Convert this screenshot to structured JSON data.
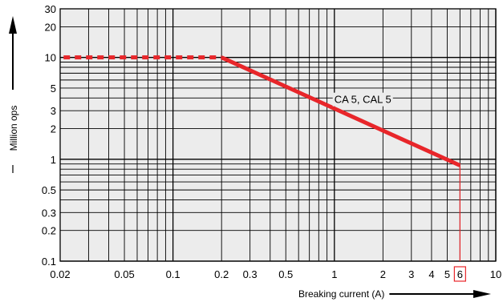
{
  "chart_data": {
    "type": "line",
    "title": "",
    "xlabel": "Breaking current (A)",
    "ylabel": "Million ops",
    "x_scale": "log",
    "y_scale": "log",
    "xlim": [
      0.02,
      10
    ],
    "ylim": [
      0.1,
      30
    ],
    "x_ticks": [
      0.02,
      0.05,
      0.1,
      0.2,
      0.3,
      0.5,
      1,
      2,
      3,
      4,
      5,
      6,
      10
    ],
    "x_tick_labels": [
      "0.02",
      "0.05",
      "0.1",
      "0.2",
      "0.3",
      "0.5",
      "1",
      "2",
      "3",
      "4",
      "5",
      "6",
      "10"
    ],
    "y_ticks": [
      0.1,
      0.2,
      0.3,
      0.5,
      1,
      2,
      3,
      5,
      10,
      20,
      30
    ],
    "y_tick_labels": [
      "0.1",
      "0.2",
      "0.3",
      "0.5",
      "1",
      "2",
      "3",
      "5",
      "10",
      "20",
      "30"
    ],
    "grid": true,
    "series": [
      {
        "name": "CA 5, CAL 5",
        "color": "#e8262a",
        "segments": [
          {
            "style": "dashed",
            "points": [
              [
                0.021,
                10
              ],
              [
                0.2,
                10
              ]
            ]
          },
          {
            "style": "solid",
            "points": [
              [
                0.2,
                10
              ],
              [
                6,
                0.87
              ]
            ]
          }
        ]
      }
    ],
    "annotations": [
      {
        "text": "CA 5, CAL 5",
        "x": 1.5,
        "y": 3.9
      }
    ],
    "marker": {
      "x": 6,
      "label": "6",
      "color": "#e8262a",
      "boxed": true
    },
    "colors": {
      "plot_background": "#ececec",
      "grid": "#000000",
      "series": "#e8262a"
    }
  }
}
